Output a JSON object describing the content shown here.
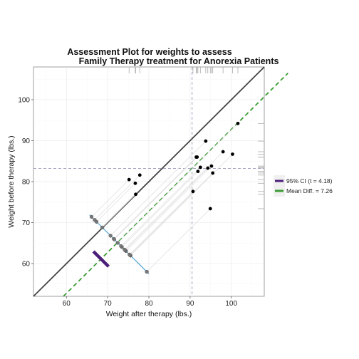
{
  "chart_data": {
    "type": "scatter",
    "title_line1": "Assessment Plot for weights to assess",
    "title_line2": "Family Therapy treatment for Anorexia Patients",
    "xlabel": "Weight after therapy (lbs.)",
    "ylabel": "Weight before therapy (lbs.)",
    "xlim": [
      52,
      108
    ],
    "ylim": [
      52,
      108
    ],
    "x_ticks": [
      60,
      70,
      80,
      90,
      100
    ],
    "y_ticks": [
      60,
      70,
      80,
      90,
      100
    ],
    "grid": true,
    "legend_position": "right",
    "points": [
      {
        "after": 95.2,
        "before": 83.8
      },
      {
        "after": 94.3,
        "before": 83.3
      },
      {
        "after": 91.5,
        "before": 86.0
      },
      {
        "after": 91.9,
        "before": 82.5
      },
      {
        "after": 100.3,
        "before": 86.7
      },
      {
        "after": 76.7,
        "before": 79.6
      },
      {
        "after": 76.8,
        "before": 76.9
      },
      {
        "after": 101.6,
        "before": 94.2
      },
      {
        "after": 94.9,
        "before": 73.4
      },
      {
        "after": 75.2,
        "before": 80.5
      },
      {
        "after": 77.8,
        "before": 81.6
      },
      {
        "after": 95.5,
        "before": 82.1
      },
      {
        "after": 90.7,
        "before": 77.6
      },
      {
        "after": 92.5,
        "before": 83.5
      },
      {
        "after": 93.8,
        "before": 89.9
      },
      {
        "after": 91.7,
        "before": 86.0
      },
      {
        "after": 98.0,
        "before": 87.3
      }
    ],
    "mean_difference": 7.26,
    "ci_t": 4.18,
    "ci_range": [
      3.58,
      10.95
    ],
    "mean_after": 90.49,
    "mean_before": 83.23,
    "legend": [
      {
        "label": "95% CI (t = 4.18)",
        "color": "#4b1f7a"
      },
      {
        "label": "Mean Diff. = 7.26",
        "color": "#3a9c32"
      }
    ],
    "colors": {
      "identity_line": "#444444",
      "mean_diff_line": "#3a9c32",
      "ci_bar": "#4b1f7a",
      "projection_axis": "#5aa9d6",
      "projected_points": "#777777",
      "data_points": "#000000",
      "mean_reference": "#9a9ab8",
      "rug": "#aaaaaa"
    }
  }
}
